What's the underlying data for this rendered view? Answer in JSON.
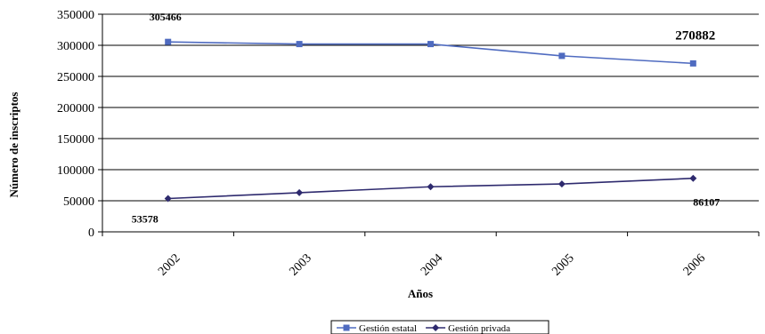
{
  "chart_data": {
    "type": "line",
    "xlabel": "Años",
    "ylabel": "Número de inscriptos",
    "categories": [
      "2002",
      "2003",
      "2004",
      "2005",
      "2006"
    ],
    "ylim": [
      0,
      350000
    ],
    "yticks": [
      0,
      50000,
      100000,
      150000,
      200000,
      250000,
      300000,
      350000
    ],
    "ytick_labels": [
      "0",
      "50000",
      "100000",
      "150000",
      "200000",
      "250000",
      "300000",
      "350000"
    ],
    "grid": true,
    "legend_position": "bottom",
    "series": [
      {
        "name": "Gestión estatal",
        "values": [
          305466,
          302000,
          302000,
          283000,
          270882
        ],
        "color": "#4f6bc0",
        "marker": "square"
      },
      {
        "name": "Gestión privada",
        "values": [
          53578,
          63000,
          72500,
          77000,
          86107
        ],
        "color": "#2e2a6e",
        "marker": "diamond"
      }
    ],
    "data_labels": [
      {
        "text": "305466",
        "series": 0,
        "index": 0
      },
      {
        "text": "270882",
        "series": 0,
        "index": 4
      },
      {
        "text": "53578",
        "series": 1,
        "index": 0
      },
      {
        "text": "86107",
        "series": 1,
        "index": 4
      }
    ]
  }
}
